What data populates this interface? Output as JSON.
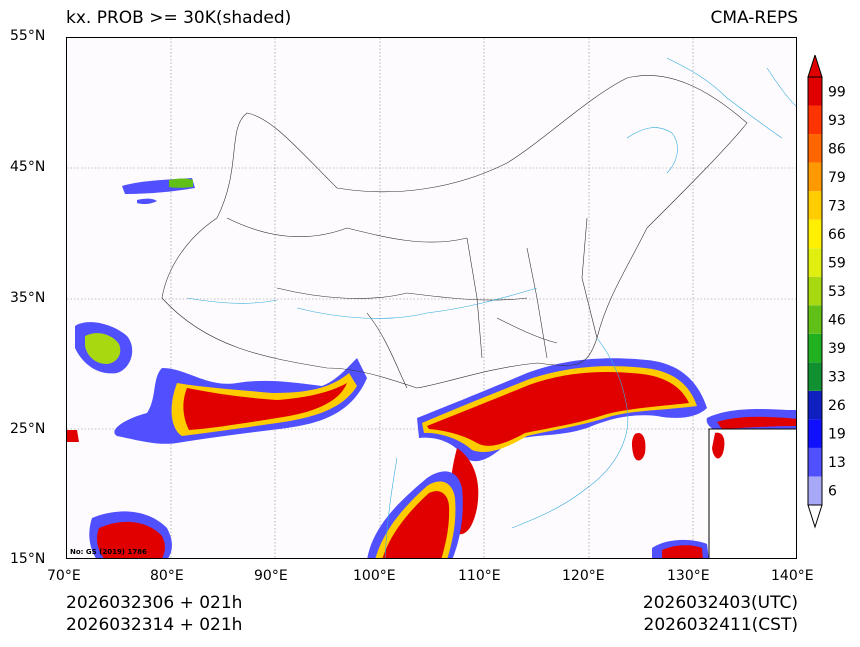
{
  "title": "kx. PROB >= 30K(shaded)",
  "model": "CMA-REPS",
  "map": {
    "lat_labels": [
      "55°N",
      "45°N",
      "35°N",
      "25°N",
      "15°N"
    ],
    "lon_labels": [
      "70°E",
      "80°E",
      "90°E",
      "100°E",
      "110°E",
      "120°E",
      "130°E",
      "140°E"
    ],
    "lat_range": [
      15,
      55
    ],
    "lon_range": [
      70,
      140
    ],
    "map_number": "No: GS (2019) 1786"
  },
  "colorbar": {
    "levels": [
      "6",
      "13",
      "19",
      "26",
      "33",
      "39",
      "46",
      "53",
      "59",
      "66",
      "73",
      "79",
      "86",
      "93",
      "99"
    ],
    "colors": [
      "#a8a8f8",
      "#5050ff",
      "#1010ff",
      "#1020c0",
      "#109030",
      "#20b020",
      "#60c018",
      "#a8d810",
      "#e0ee10",
      "#fff000",
      "#ffcc00",
      "#ff9900",
      "#ff6600",
      "#ff3300",
      "#e00000"
    ],
    "low_color": "#ffffff",
    "high_color": "#e00000"
  },
  "footer": {
    "init_utc": "2026032306  +  021h",
    "init_cst": "2026032314  +  021h",
    "valid_utc": "2026032403(UTC)",
    "valid_cst": "2026032411(CST)"
  }
}
